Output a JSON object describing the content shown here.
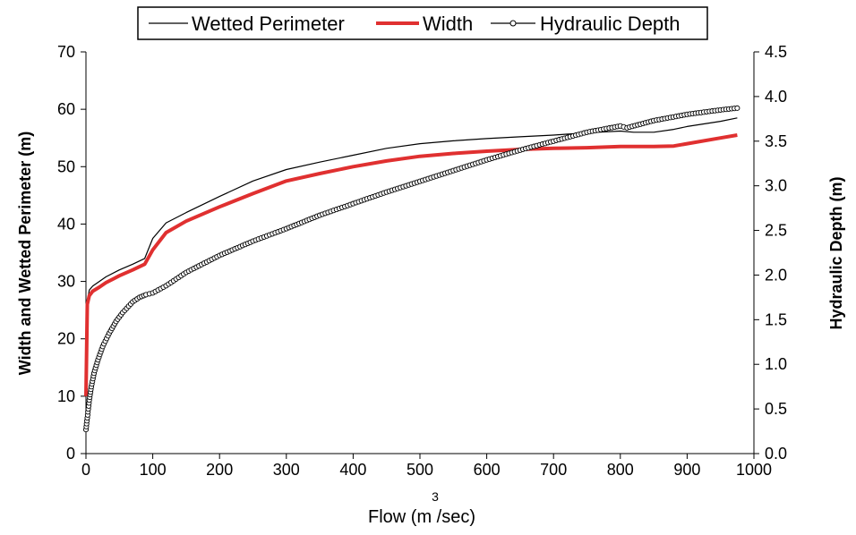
{
  "chart_data": {
    "type": "line",
    "xlabel": "Flow (m /sec)",
    "xlabel_superscript": "3",
    "ylabel_left": "Width and Wetted Perimeter (m)",
    "ylabel_right": "Hydraulic Depth (m)",
    "xlim": [
      0,
      1000
    ],
    "ylim_left": [
      0,
      70
    ],
    "ylim_right": [
      0,
      4.5
    ],
    "x_ticks": [
      "0",
      "100",
      "200",
      "300",
      "400",
      "500",
      "600",
      "700",
      "800",
      "900",
      "1000"
    ],
    "y_left_ticks": [
      "0",
      "10",
      "20",
      "30",
      "40",
      "50",
      "60",
      "70"
    ],
    "y_right_ticks": [
      "0.0",
      "0.5",
      "1.0",
      "1.5",
      "2.0",
      "2.5",
      "3.0",
      "3.5",
      "4.0",
      "4.5"
    ],
    "grid": false,
    "legend_position": "top-center",
    "series": [
      {
        "name": "Wetted Perimeter",
        "axis": "left",
        "color": "#000000",
        "style": "thin",
        "x": [
          0,
          2,
          5,
          10,
          20,
          30,
          50,
          70,
          88,
          100,
          120,
          150,
          200,
          250,
          300,
          350,
          400,
          450,
          500,
          550,
          600,
          650,
          700,
          750,
          800,
          820,
          850,
          880,
          900,
          950,
          975
        ],
        "y": [
          10,
          26.5,
          28.5,
          29.2,
          30.0,
          30.8,
          32.0,
          33.0,
          34.0,
          37.5,
          40.2,
          42.0,
          44.8,
          47.5,
          49.5,
          50.8,
          52.0,
          53.2,
          54.0,
          54.5,
          54.9,
          55.2,
          55.5,
          55.9,
          56.2,
          56.0,
          56.0,
          56.5,
          57.0,
          57.9,
          58.5
        ]
      },
      {
        "name": "Width",
        "axis": "left",
        "color": "#e03030",
        "style": "thick",
        "x": [
          0,
          2,
          5,
          10,
          20,
          30,
          50,
          70,
          88,
          100,
          120,
          150,
          200,
          250,
          300,
          350,
          400,
          450,
          500,
          550,
          600,
          650,
          700,
          750,
          800,
          820,
          850,
          880,
          900,
          950,
          975
        ],
        "y": [
          10,
          26.0,
          27.5,
          28.3,
          29.0,
          29.8,
          31.0,
          32.0,
          33.0,
          35.5,
          38.5,
          40.5,
          43.0,
          45.3,
          47.5,
          48.8,
          50.0,
          51.0,
          51.8,
          52.3,
          52.7,
          53.0,
          53.2,
          53.3,
          53.5,
          53.5,
          53.5,
          53.6,
          54.0,
          55.0,
          55.5
        ]
      },
      {
        "name": "Hydraulic Depth",
        "axis": "right",
        "color": "#000000",
        "style": "markers",
        "x": [
          0,
          2,
          5,
          8,
          12,
          18,
          25,
          35,
          45,
          55,
          70,
          80,
          90,
          100,
          120,
          150,
          200,
          250,
          300,
          350,
          400,
          450,
          500,
          550,
          600,
          650,
          700,
          750,
          800,
          810,
          850,
          900,
          950,
          975
        ],
        "y": [
          0.27,
          0.4,
          0.6,
          0.75,
          0.9,
          1.05,
          1.2,
          1.35,
          1.48,
          1.58,
          1.7,
          1.75,
          1.78,
          1.8,
          1.88,
          2.03,
          2.22,
          2.38,
          2.52,
          2.67,
          2.8,
          2.93,
          3.05,
          3.17,
          3.29,
          3.4,
          3.5,
          3.6,
          3.67,
          3.65,
          3.73,
          3.8,
          3.85,
          3.87
        ]
      }
    ]
  }
}
